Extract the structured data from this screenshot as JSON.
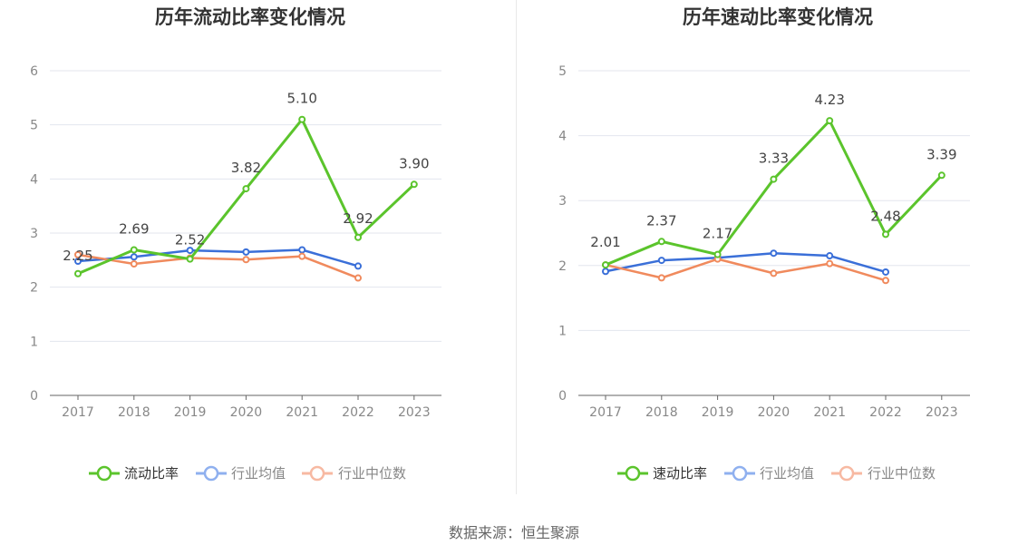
{
  "source_label": "数据来源：恒生聚源",
  "colors": {
    "company": "#5bc42c",
    "avg": "#3a6fd8",
    "median": "#f08a5d",
    "avg_legend": "#8fb0ef",
    "median_legend": "#f7b9a2"
  },
  "chart_data": [
    {
      "type": "line",
      "title": "历年流动比率变化情况",
      "categories": [
        "2017",
        "2018",
        "2019",
        "2020",
        "2021",
        "2022",
        "2023"
      ],
      "ylim": [
        0,
        6
      ],
      "yticks": [
        0,
        1,
        2,
        3,
        4,
        5,
        6
      ],
      "grid": true,
      "legend_position": "bottom",
      "series": [
        {
          "name": "流动比率",
          "key": "company",
          "values": [
            2.25,
            2.69,
            2.52,
            3.82,
            5.1,
            2.92,
            3.9
          ],
          "labels": [
            "2.25",
            "2.69",
            "2.52",
            "3.82",
            "5.10",
            "2.92",
            "3.90"
          ]
        },
        {
          "name": "行业均值",
          "key": "avg",
          "values": [
            2.48,
            2.56,
            2.68,
            2.65,
            2.69,
            2.39,
            null
          ]
        },
        {
          "name": "行业中位数",
          "key": "median",
          "values": [
            2.6,
            2.43,
            2.54,
            2.51,
            2.57,
            2.17,
            null
          ]
        }
      ]
    },
    {
      "type": "line",
      "title": "历年速动比率变化情况",
      "categories": [
        "2017",
        "2018",
        "2019",
        "2020",
        "2021",
        "2022",
        "2023"
      ],
      "ylim": [
        0,
        5
      ],
      "yticks": [
        0,
        1,
        2,
        3,
        4,
        5
      ],
      "grid": true,
      "legend_position": "bottom",
      "series": [
        {
          "name": "速动比率",
          "key": "company",
          "values": [
            2.01,
            2.37,
            2.17,
            3.33,
            4.23,
            2.48,
            3.39
          ],
          "labels": [
            "2.01",
            "2.37",
            "2.17",
            "3.33",
            "4.23",
            "2.48",
            "3.39"
          ]
        },
        {
          "name": "行业均值",
          "key": "avg",
          "values": [
            1.91,
            2.08,
            2.12,
            2.19,
            2.15,
            1.9,
            null
          ]
        },
        {
          "name": "行业中位数",
          "key": "median",
          "values": [
            2.01,
            1.81,
            2.1,
            1.88,
            2.03,
            1.77,
            null
          ]
        }
      ]
    }
  ]
}
